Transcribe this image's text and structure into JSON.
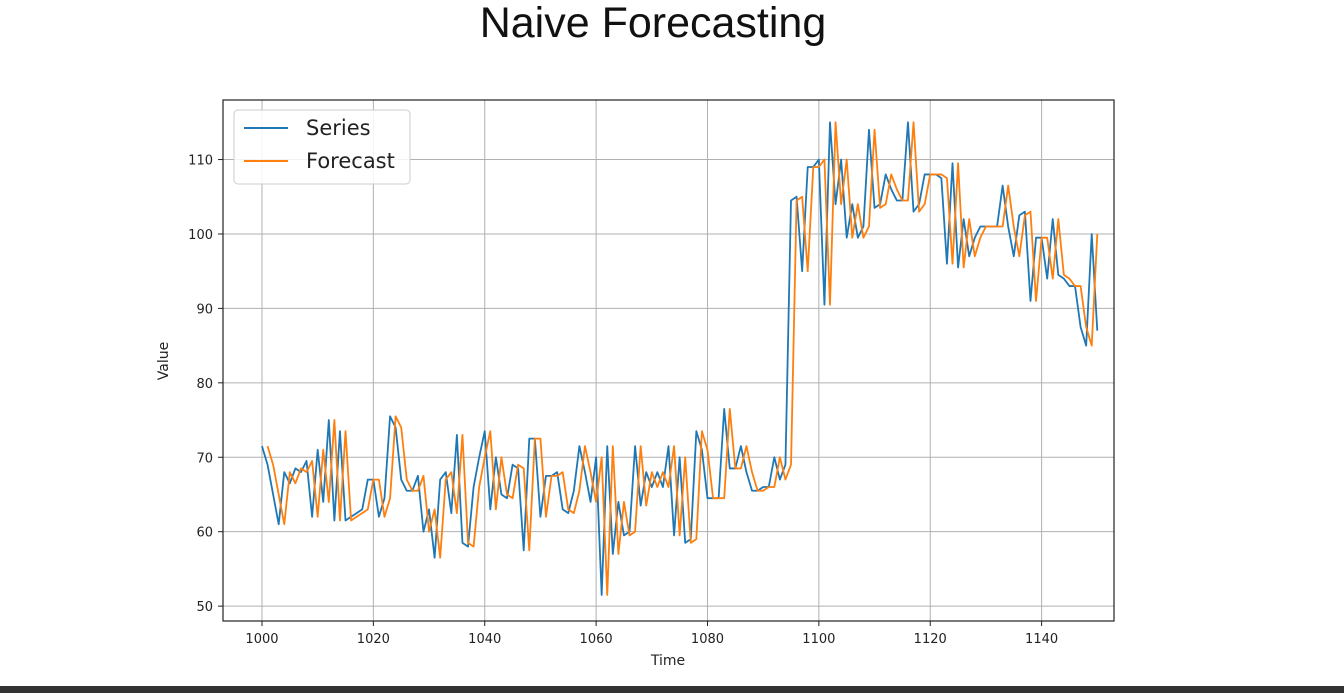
{
  "header": {
    "title": "Naive Forecasting"
  },
  "chart_data": {
    "type": "line",
    "title": "Naive Forecasting",
    "xlabel": "Time",
    "ylabel": "Value",
    "xlim": [
      993,
      1153
    ],
    "ylim": [
      48,
      118
    ],
    "xticks": [
      1000,
      1020,
      1040,
      1060,
      1080,
      1100,
      1120,
      1140
    ],
    "yticks": [
      50,
      60,
      70,
      80,
      90,
      100,
      110
    ],
    "grid": true,
    "legend_position": "top-left",
    "x": [
      1000,
      1001,
      1002,
      1003,
      1004,
      1005,
      1006,
      1007,
      1008,
      1009,
      1010,
      1011,
      1012,
      1013,
      1014,
      1015,
      1016,
      1017,
      1018,
      1019,
      1020,
      1021,
      1022,
      1023,
      1024,
      1025,
      1026,
      1027,
      1028,
      1029,
      1030,
      1031,
      1032,
      1033,
      1034,
      1035,
      1036,
      1037,
      1038,
      1039,
      1040,
      1041,
      1042,
      1043,
      1044,
      1045,
      1046,
      1047,
      1048,
      1049,
      1050,
      1051,
      1052,
      1053,
      1054,
      1055,
      1056,
      1057,
      1058,
      1059,
      1060,
      1061,
      1062,
      1063,
      1064,
      1065,
      1066,
      1067,
      1068,
      1069,
      1070,
      1071,
      1072,
      1073,
      1074,
      1075,
      1076,
      1077,
      1078,
      1079,
      1080,
      1081,
      1082,
      1083,
      1084,
      1085,
      1086,
      1087,
      1088,
      1089,
      1090,
      1091,
      1092,
      1093,
      1094,
      1095,
      1096,
      1097,
      1098,
      1099,
      1100,
      1101,
      1102,
      1103,
      1104,
      1105,
      1106,
      1107,
      1108,
      1109,
      1110,
      1111,
      1112,
      1113,
      1114,
      1115,
      1116,
      1117,
      1118,
      1119,
      1120,
      1121,
      1122,
      1123,
      1124,
      1125,
      1126,
      1127,
      1128,
      1129,
      1130,
      1131,
      1132,
      1133,
      1134,
      1135,
      1136,
      1137,
      1138,
      1139,
      1140,
      1141,
      1142,
      1143,
      1144,
      1145,
      1146,
      1147,
      1148,
      1149,
      1150
    ],
    "series": [
      {
        "name": "Series",
        "color": "#1f77b4",
        "values": [
          71.5,
          69,
          65,
          61,
          68,
          66.5,
          68.5,
          68,
          69.5,
          62,
          71,
          64,
          75,
          61.5,
          73.5,
          61.5,
          62,
          62.5,
          63,
          67,
          67,
          62,
          64.5,
          75.5,
          74,
          67,
          65.5,
          65.5,
          67.5,
          60,
          63,
          56.5,
          67,
          68,
          62.5,
          73,
          58.5,
          58,
          66,
          70,
          73.5,
          63,
          70,
          65,
          64.5,
          69,
          68.5,
          57.5,
          72.5,
          72.5,
          62,
          67.5,
          67.5,
          68,
          63,
          62.5,
          65.5,
          71.5,
          68,
          64,
          70,
          51.5,
          71.5,
          57,
          64,
          59.5,
          60,
          71.5,
          63.5,
          68,
          66,
          68,
          66,
          71.5,
          59.5,
          70,
          58.5,
          59,
          73.5,
          71,
          64.5,
          64.5,
          64.5,
          76.5,
          68.5,
          68.5,
          71.5,
          68,
          65.5,
          65.5,
          66,
          66,
          70,
          67,
          69,
          104.5,
          105,
          95,
          109,
          109,
          110,
          90.5,
          115,
          104,
          110,
          99.5,
          104,
          99.5,
          101,
          114,
          103.5,
          104,
          108,
          106,
          104.5,
          104.5,
          115,
          103,
          104,
          108,
          108,
          108,
          107.5,
          96,
          109.5,
          95.5,
          102,
          97,
          99.5,
          101,
          101,
          101,
          101,
          106.5,
          101,
          97,
          102.5,
          103,
          91,
          99.5,
          99.5,
          94,
          102,
          94.5,
          94,
          93,
          93,
          87.5,
          85,
          100,
          87
        ]
      },
      {
        "name": "Forecast",
        "color": "#ff7f0e",
        "values": [
          null,
          71.5,
          69,
          65,
          61,
          68,
          66.5,
          68.5,
          68,
          69.5,
          62,
          71,
          64,
          75,
          61.5,
          73.5,
          61.5,
          62,
          62.5,
          63,
          67,
          67,
          62,
          64.5,
          75.5,
          74,
          67,
          65.5,
          65.5,
          67.5,
          60,
          63,
          56.5,
          67,
          68,
          62.5,
          73,
          58.5,
          58,
          66,
          70,
          73.5,
          63,
          70,
          65,
          64.5,
          69,
          68.5,
          57.5,
          72.5,
          72.5,
          62,
          67.5,
          67.5,
          68,
          63,
          62.5,
          65.5,
          71.5,
          68,
          64,
          70,
          51.5,
          71.5,
          57,
          64,
          59.5,
          60,
          71.5,
          63.5,
          68,
          66,
          68,
          66,
          71.5,
          59.5,
          70,
          58.5,
          59,
          73.5,
          71,
          64.5,
          64.5,
          64.5,
          76.5,
          68.5,
          68.5,
          71.5,
          68,
          65.5,
          65.5,
          66,
          66,
          70,
          67,
          69,
          104.5,
          105,
          95,
          109,
          109,
          110,
          90.5,
          115,
          104,
          110,
          99.5,
          104,
          99.5,
          101,
          114,
          103.5,
          104,
          108,
          106,
          104.5,
          104.5,
          115,
          103,
          104,
          108,
          108,
          108,
          107.5,
          96,
          109.5,
          95.5,
          102,
          97,
          99.5,
          101,
          101,
          101,
          101,
          106.5,
          101,
          97,
          102.5,
          103,
          91,
          99.5,
          99.5,
          94,
          102,
          94.5,
          94,
          93,
          93,
          87.5,
          85,
          100
        ]
      }
    ]
  }
}
